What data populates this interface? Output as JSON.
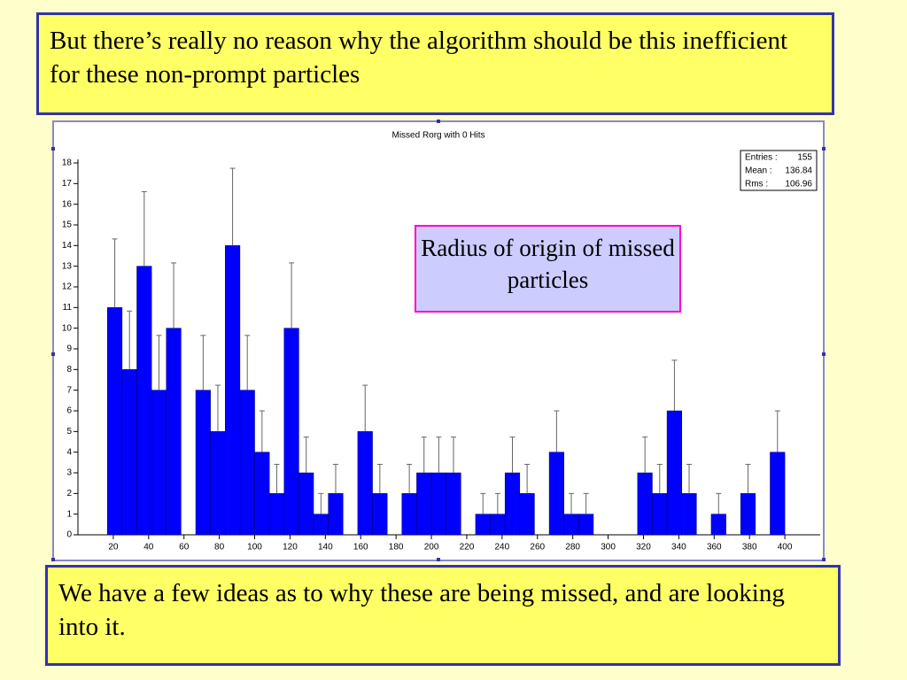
{
  "header_text": "But there’s really no reason why the algorithm should be this inefficient for these non-prompt particles",
  "footer_text": "We have a few ideas as to why these are being missed, and are looking into it.",
  "chart_data": {
    "type": "histogram",
    "title": "Missed Rorg with 0 Hits",
    "annotation": "Radius of origin of missed particles",
    "bins": [
      16.67,
      25,
      33.33,
      41.67,
      50,
      58.33,
      66.67,
      75,
      83.33,
      91.67,
      100,
      108.33,
      116.67,
      125,
      133.33,
      141.67,
      150,
      158.33,
      166.67,
      175,
      183.33,
      191.67,
      200,
      208.33,
      216.67,
      225,
      233.33,
      241.67,
      250,
      258.33,
      266.67,
      275,
      283.33,
      291.67,
      300,
      308.33,
      316.67,
      325,
      333.33,
      341.67,
      350,
      358.33,
      366.67,
      375,
      383.33,
      391.67,
      400
    ],
    "values": [
      11,
      8,
      13,
      7,
      10,
      0,
      7,
      5,
      14,
      7,
      4,
      2,
      10,
      3,
      1,
      2,
      0,
      5,
      2,
      0,
      2,
      3,
      3,
      3,
      0,
      1,
      1,
      3,
      2,
      0,
      4,
      1,
      1,
      0,
      0,
      0,
      3,
      2,
      6,
      2,
      0,
      1,
      0,
      2,
      0,
      4
    ],
    "errors": [
      3.32,
      2.83,
      3.61,
      2.65,
      3.16,
      0,
      2.65,
      2.24,
      3.74,
      2.65,
      2,
      1.41,
      3.16,
      1.73,
      1,
      1.41,
      0,
      2.24,
      1.41,
      0,
      1.41,
      1.73,
      1.73,
      1.73,
      0,
      1,
      1,
      1.73,
      1.41,
      0,
      2,
      1,
      1,
      0,
      0,
      0,
      1.73,
      1.41,
      2.45,
      1.41,
      0,
      1,
      0,
      1.41,
      0,
      2
    ],
    "color": "#0000ff",
    "xlim": [
      0,
      420
    ],
    "ylim": [
      0,
      18
    ],
    "xticks": [
      20,
      40,
      60,
      80,
      100,
      120,
      140,
      160,
      180,
      200,
      220,
      240,
      260,
      280,
      300,
      320,
      340,
      360,
      380,
      400
    ],
    "yticks": [
      0,
      1,
      2,
      3,
      4,
      5,
      6,
      7,
      8,
      9,
      10,
      11,
      12,
      13,
      14,
      15,
      16,
      17,
      18
    ],
    "grid": false,
    "stats": [
      {
        "label": "Entries :",
        "value": 155
      },
      {
        "label": "Mean :",
        "value": 136.84
      },
      {
        "label": "Rms :",
        "value": 106.96
      }
    ]
  }
}
